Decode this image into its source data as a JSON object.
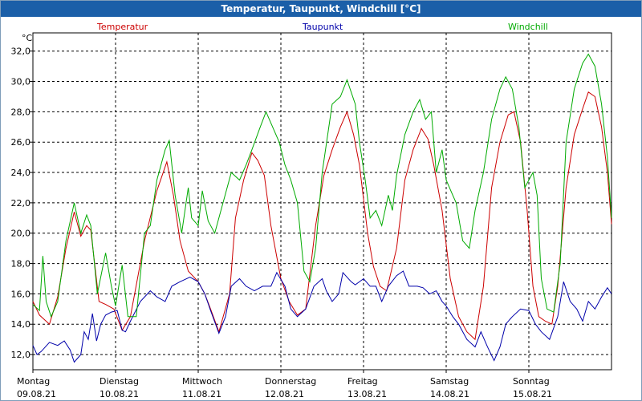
{
  "title": "Temperatur, Taupunkt, Windchill [°C]",
  "chart_data": {
    "type": "line",
    "title": "Temperatur, Taupunkt, Windchill [°C]",
    "ylabel": "°C",
    "ylim": [
      11.0,
      33.2
    ],
    "yticks": [
      "12,0",
      "14,0",
      "16,0",
      "18,0",
      "20,0",
      "22,0",
      "24,0",
      "26,0",
      "28,0",
      "30,0",
      "32,0"
    ],
    "xlim": [
      0,
      7.0
    ],
    "xticks": [
      {
        "day": "Montag",
        "date": "09.08.21"
      },
      {
        "day": "Dienstag",
        "date": "10.08.21"
      },
      {
        "day": "Mittwoch",
        "date": "11.08.21"
      },
      {
        "day": "Donnerstag",
        "date": "12.08.21"
      },
      {
        "day": "Freitag",
        "date": "13.08.21"
      },
      {
        "day": "Samstag",
        "date": "14.08.21"
      },
      {
        "day": "Sonntag",
        "date": "15.08.21"
      }
    ],
    "series": [
      {
        "name": "Temperatur",
        "color": "#cc0000",
        "points": [
          [
            0,
            15.5
          ],
          [
            0.08,
            14.6
          ],
          [
            0.2,
            14.0
          ],
          [
            0.3,
            15.8
          ],
          [
            0.4,
            19.0
          ],
          [
            0.5,
            21.4
          ],
          [
            0.58,
            19.8
          ],
          [
            0.65,
            20.5
          ],
          [
            0.7,
            20.2
          ],
          [
            0.8,
            15.5
          ],
          [
            0.88,
            15.3
          ],
          [
            0.98,
            15.0
          ],
          [
            1.08,
            13.6
          ],
          [
            1.18,
            14.5
          ],
          [
            1.35,
            19.5
          ],
          [
            1.5,
            22.8
          ],
          [
            1.62,
            24.7
          ],
          [
            1.7,
            22.5
          ],
          [
            1.78,
            19.5
          ],
          [
            1.88,
            17.5
          ],
          [
            2.0,
            16.8
          ],
          [
            2.08,
            16.0
          ],
          [
            2.15,
            15.0
          ],
          [
            2.25,
            13.5
          ],
          [
            2.38,
            16.0
          ],
          [
            2.45,
            21.0
          ],
          [
            2.55,
            23.5
          ],
          [
            2.65,
            25.3
          ],
          [
            2.72,
            24.8
          ],
          [
            2.8,
            23.8
          ],
          [
            2.88,
            20.5
          ],
          [
            3.0,
            17.0
          ],
          [
            3.1,
            15.5
          ],
          [
            3.2,
            14.6
          ],
          [
            3.3,
            15.0
          ],
          [
            3.42,
            20.5
          ],
          [
            3.52,
            23.8
          ],
          [
            3.62,
            25.5
          ],
          [
            3.72,
            27.0
          ],
          [
            3.8,
            28.0
          ],
          [
            3.88,
            26.5
          ],
          [
            3.95,
            24.5
          ],
          [
            4.05,
            20.0
          ],
          [
            4.12,
            17.8
          ],
          [
            4.2,
            16.5
          ],
          [
            4.28,
            16.2
          ],
          [
            4.4,
            19.0
          ],
          [
            4.5,
            23.5
          ],
          [
            4.6,
            25.5
          ],
          [
            4.7,
            26.9
          ],
          [
            4.78,
            26.2
          ],
          [
            4.85,
            24.5
          ],
          [
            4.95,
            21.5
          ],
          [
            5.05,
            17.0
          ],
          [
            5.15,
            14.5
          ],
          [
            5.25,
            13.5
          ],
          [
            5.35,
            13.0
          ],
          [
            5.45,
            16.5
          ],
          [
            5.55,
            23.0
          ],
          [
            5.65,
            26.0
          ],
          [
            5.75,
            27.8
          ],
          [
            5.82,
            28.0
          ],
          [
            5.9,
            26.0
          ],
          [
            5.98,
            21.5
          ],
          [
            6.05,
            16.5
          ],
          [
            6.12,
            14.5
          ],
          [
            6.2,
            14.2
          ],
          [
            6.28,
            14.0
          ],
          [
            6.35,
            16.5
          ],
          [
            6.45,
            23.0
          ],
          [
            6.55,
            26.5
          ],
          [
            6.65,
            28.2
          ],
          [
            6.72,
            29.3
          ],
          [
            6.8,
            29.0
          ],
          [
            6.88,
            27.0
          ],
          [
            6.95,
            24.0
          ],
          [
            7.0,
            20.6
          ]
        ]
      },
      {
        "name": "Taupunkt",
        "color": "#0000aa",
        "points": [
          [
            0,
            12.6
          ],
          [
            0.05,
            12.0
          ],
          [
            0.1,
            12.2
          ],
          [
            0.2,
            12.8
          ],
          [
            0.3,
            12.6
          ],
          [
            0.38,
            12.9
          ],
          [
            0.45,
            12.3
          ],
          [
            0.5,
            11.5
          ],
          [
            0.58,
            12.0
          ],
          [
            0.62,
            13.5
          ],
          [
            0.67,
            13.0
          ],
          [
            0.72,
            14.7
          ],
          [
            0.77,
            12.9
          ],
          [
            0.82,
            14.0
          ],
          [
            0.88,
            14.6
          ],
          [
            0.95,
            14.8
          ],
          [
            1.02,
            14.9
          ],
          [
            1.08,
            13.6
          ],
          [
            1.12,
            13.5
          ],
          [
            1.18,
            14.2
          ],
          [
            1.3,
            15.5
          ],
          [
            1.42,
            16.2
          ],
          [
            1.5,
            15.8
          ],
          [
            1.6,
            15.5
          ],
          [
            1.68,
            16.5
          ],
          [
            1.78,
            16.8
          ],
          [
            1.9,
            17.1
          ],
          [
            2.0,
            16.8
          ],
          [
            2.08,
            16.0
          ],
          [
            2.15,
            14.9
          ],
          [
            2.25,
            13.4
          ],
          [
            2.33,
            14.5
          ],
          [
            2.4,
            16.5
          ],
          [
            2.5,
            17.0
          ],
          [
            2.58,
            16.5
          ],
          [
            2.68,
            16.2
          ],
          [
            2.78,
            16.5
          ],
          [
            2.88,
            16.5
          ],
          [
            2.95,
            17.4
          ],
          [
            3.05,
            16.5
          ],
          [
            3.12,
            15.0
          ],
          [
            3.2,
            14.5
          ],
          [
            3.3,
            15.0
          ],
          [
            3.4,
            16.5
          ],
          [
            3.5,
            17.0
          ],
          [
            3.55,
            16.2
          ],
          [
            3.62,
            15.5
          ],
          [
            3.7,
            16.0
          ],
          [
            3.75,
            17.4
          ],
          [
            3.85,
            16.8
          ],
          [
            3.9,
            16.6
          ],
          [
            4.0,
            17.0
          ],
          [
            4.08,
            16.5
          ],
          [
            4.15,
            16.5
          ],
          [
            4.22,
            15.5
          ],
          [
            4.3,
            16.5
          ],
          [
            4.4,
            17.2
          ],
          [
            4.48,
            17.5
          ],
          [
            4.55,
            16.5
          ],
          [
            4.65,
            16.5
          ],
          [
            4.72,
            16.4
          ],
          [
            4.8,
            16.0
          ],
          [
            4.88,
            16.2
          ],
          [
            4.95,
            15.5
          ],
          [
            5.0,
            15.2
          ],
          [
            5.08,
            14.5
          ],
          [
            5.15,
            14.0
          ],
          [
            5.25,
            13.0
          ],
          [
            5.35,
            12.5
          ],
          [
            5.42,
            13.5
          ],
          [
            5.5,
            12.5
          ],
          [
            5.58,
            11.6
          ],
          [
            5.65,
            12.5
          ],
          [
            5.72,
            14.0
          ],
          [
            5.8,
            14.5
          ],
          [
            5.9,
            15.0
          ],
          [
            6.0,
            14.9
          ],
          [
            6.08,
            14.0
          ],
          [
            6.15,
            13.5
          ],
          [
            6.25,
            13.0
          ],
          [
            6.35,
            14.5
          ],
          [
            6.42,
            16.8
          ],
          [
            6.5,
            15.5
          ],
          [
            6.58,
            15.0
          ],
          [
            6.65,
            14.2
          ],
          [
            6.72,
            15.5
          ],
          [
            6.8,
            15.0
          ],
          [
            6.88,
            15.8
          ],
          [
            6.95,
            16.4
          ],
          [
            7.0,
            16.0
          ]
        ]
      },
      {
        "name": "Windchill",
        "color": "#00aa00",
        "points": [
          [
            0,
            15.3
          ],
          [
            0.08,
            14.9
          ],
          [
            0.12,
            18.5
          ],
          [
            0.16,
            15.5
          ],
          [
            0.22,
            14.5
          ],
          [
            0.3,
            15.5
          ],
          [
            0.4,
            19.5
          ],
          [
            0.5,
            22.0
          ],
          [
            0.58,
            20.0
          ],
          [
            0.65,
            21.2
          ],
          [
            0.7,
            20.5
          ],
          [
            0.78,
            16.0
          ],
          [
            0.88,
            18.7
          ],
          [
            0.95,
            16.5
          ],
          [
            1.0,
            15.2
          ],
          [
            1.08,
            17.9
          ],
          [
            1.15,
            14.5
          ],
          [
            1.25,
            14.5
          ],
          [
            1.35,
            20.0
          ],
          [
            1.42,
            20.5
          ],
          [
            1.5,
            23.5
          ],
          [
            1.6,
            25.5
          ],
          [
            1.65,
            26.1
          ],
          [
            1.72,
            22.5
          ],
          [
            1.8,
            20.0
          ],
          [
            1.88,
            23.0
          ],
          [
            1.92,
            21.0
          ],
          [
            2.0,
            20.5
          ],
          [
            2.05,
            22.8
          ],
          [
            2.12,
            20.8
          ],
          [
            2.2,
            20.0
          ],
          [
            2.3,
            22.0
          ],
          [
            2.4,
            24.0
          ],
          [
            2.5,
            23.5
          ],
          [
            2.58,
            24.5
          ],
          [
            2.65,
            25.5
          ],
          [
            2.75,
            27.0
          ],
          [
            2.82,
            28.0
          ],
          [
            2.9,
            27.0
          ],
          [
            2.98,
            26.0
          ],
          [
            3.05,
            24.5
          ],
          [
            3.12,
            23.5
          ],
          [
            3.2,
            22.0
          ],
          [
            3.28,
            17.5
          ],
          [
            3.35,
            16.8
          ],
          [
            3.42,
            19.0
          ],
          [
            3.5,
            24.0
          ],
          [
            3.62,
            28.5
          ],
          [
            3.72,
            29.0
          ],
          [
            3.8,
            30.1
          ],
          [
            3.9,
            28.5
          ],
          [
            3.95,
            26.0
          ],
          [
            4.02,
            23.5
          ],
          [
            4.08,
            21.0
          ],
          [
            4.15,
            21.5
          ],
          [
            4.22,
            20.5
          ],
          [
            4.3,
            22.5
          ],
          [
            4.35,
            21.5
          ],
          [
            4.4,
            23.8
          ],
          [
            4.5,
            26.5
          ],
          [
            4.6,
            28.0
          ],
          [
            4.68,
            28.8
          ],
          [
            4.75,
            27.5
          ],
          [
            4.82,
            28.0
          ],
          [
            4.88,
            24.0
          ],
          [
            4.95,
            25.5
          ],
          [
            5.0,
            23.5
          ],
          [
            5.08,
            22.5
          ],
          [
            5.12,
            22.0
          ],
          [
            5.2,
            19.5
          ],
          [
            5.28,
            19.0
          ],
          [
            5.35,
            21.5
          ],
          [
            5.45,
            24.0
          ],
          [
            5.55,
            27.5
          ],
          [
            5.65,
            29.5
          ],
          [
            5.72,
            30.3
          ],
          [
            5.8,
            29.5
          ],
          [
            5.88,
            27.0
          ],
          [
            5.95,
            23.0
          ],
          [
            6.0,
            23.5
          ],
          [
            6.05,
            24.0
          ],
          [
            6.1,
            22.5
          ],
          [
            6.15,
            17.0
          ],
          [
            6.22,
            15.0
          ],
          [
            6.3,
            14.8
          ],
          [
            6.38,
            18.0
          ],
          [
            6.45,
            26.0
          ],
          [
            6.55,
            29.5
          ],
          [
            6.65,
            31.2
          ],
          [
            6.72,
            31.8
          ],
          [
            6.8,
            31.0
          ],
          [
            6.88,
            28.5
          ],
          [
            6.95,
            25.0
          ],
          [
            7.0,
            21.0
          ]
        ]
      }
    ]
  }
}
